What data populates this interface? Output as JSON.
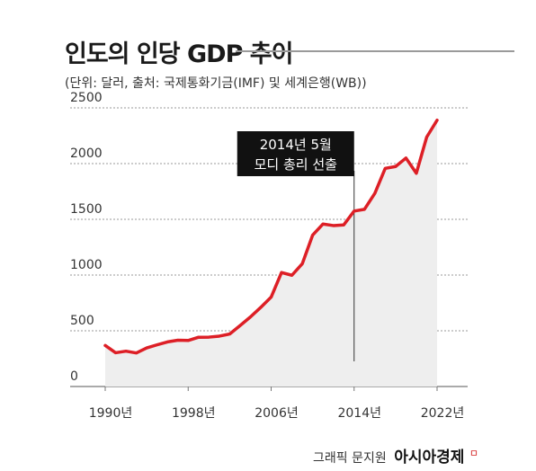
{
  "title": "인도의 인당 GDP 추이",
  "subtitle": "(단위: 달러, 출처: 국제통화기금(IMF) 및 세계은행(WB))",
  "credit": {
    "text": "그래픽 문지원",
    "brand": "아시아경제",
    "mark": "ㅁ"
  },
  "chart_data": {
    "type": "area",
    "title": "인도의 인당 GDP 추이",
    "xlabel": "",
    "ylabel": "",
    "x": [
      1990,
      1991,
      1992,
      1993,
      1994,
      1995,
      1996,
      1997,
      1998,
      1999,
      2000,
      2001,
      2002,
      2003,
      2004,
      2005,
      2006,
      2007,
      2008,
      2009,
      2010,
      2011,
      2012,
      2013,
      2014,
      2015,
      2016,
      2017,
      2018,
      2019,
      2020,
      2021,
      2022
    ],
    "series": [
      {
        "name": "",
        "values": [
          368,
          303,
          317,
          301,
          346,
          374,
          400,
          415,
          413,
          442,
          443,
          452,
          471,
          546,
          624,
          710,
          802,
          1023,
          998,
          1101,
          1358,
          1458,
          1444,
          1450,
          1574,
          1590,
          1733,
          1957,
          1974,
          2050,
          1913,
          2238,
          2389
        ]
      }
    ],
    "xlim": [
      1990,
      2022
    ],
    "ylim": [
      0,
      2500
    ],
    "yticks": [
      "0",
      "500",
      "1000",
      "1500",
      "2000",
      "2500"
    ],
    "xticks": [
      "1990년",
      "1998년",
      "2006년",
      "2014년",
      "2022년"
    ],
    "xtick_values": [
      1990,
      1998,
      2006,
      2014,
      2022
    ],
    "grid": "horizontal dotted",
    "annotation": {
      "x": 2014,
      "lines": [
        "2014년 5월",
        "모디 총리 선출"
      ]
    },
    "colors": {
      "line": "#dd1f26",
      "area": "#eeeeee",
      "annotation_box": "#111111",
      "annotation_text": "#ffffff"
    }
  }
}
